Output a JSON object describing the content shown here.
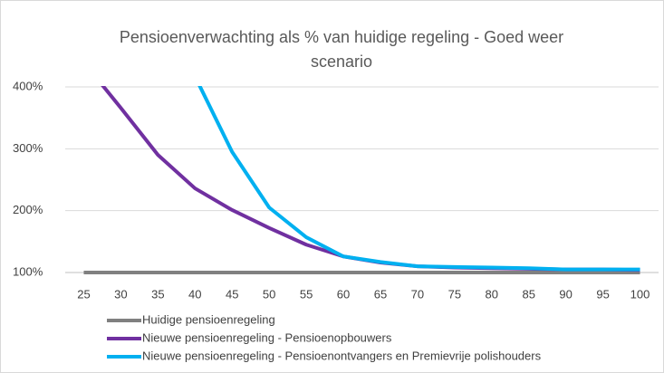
{
  "chart_data": {
    "type": "line",
    "title": "Pensioenverwachting als % van huidige regeling - Goed weer scenario",
    "categories": [
      "25",
      "30",
      "35",
      "40",
      "45",
      "50",
      "55",
      "60",
      "65",
      "70",
      "75",
      "80",
      "85",
      "90",
      "95",
      "100"
    ],
    "series": [
      {
        "name": "Huidige pensioenregeling",
        "color": "#808080",
        "values": [
          100,
          100,
          100,
          100,
          100,
          100,
          100,
          100,
          100,
          100,
          100,
          100,
          100,
          100,
          100,
          100
        ]
      },
      {
        "name": "Nieuwe pensioenregeling - Pensioenopbouwers",
        "color": "#7030a0",
        "values": [
          440,
          366,
          290,
          236,
          201,
          172,
          145,
          126,
          116,
          110,
          108,
          107,
          106,
          105,
          105,
          104
        ]
      },
      {
        "name": "Nieuwe pensioenregeling - Pensioenontvangers en Premievrije polishouders",
        "color": "#00b0f0",
        "values": [
          null,
          null,
          null,
          417,
          295,
          205,
          157,
          126,
          117,
          110,
          109,
          108,
          107,
          105,
          105,
          105
        ]
      }
    ],
    "ylim": [
      100,
      400
    ],
    "yticks": [
      {
        "value": 100,
        "label": "100%"
      },
      {
        "value": 200,
        "label": "200%"
      },
      {
        "value": 300,
        "label": "300%"
      },
      {
        "value": 400,
        "label": "400%"
      }
    ],
    "grid": true,
    "legend": "bottom"
  }
}
